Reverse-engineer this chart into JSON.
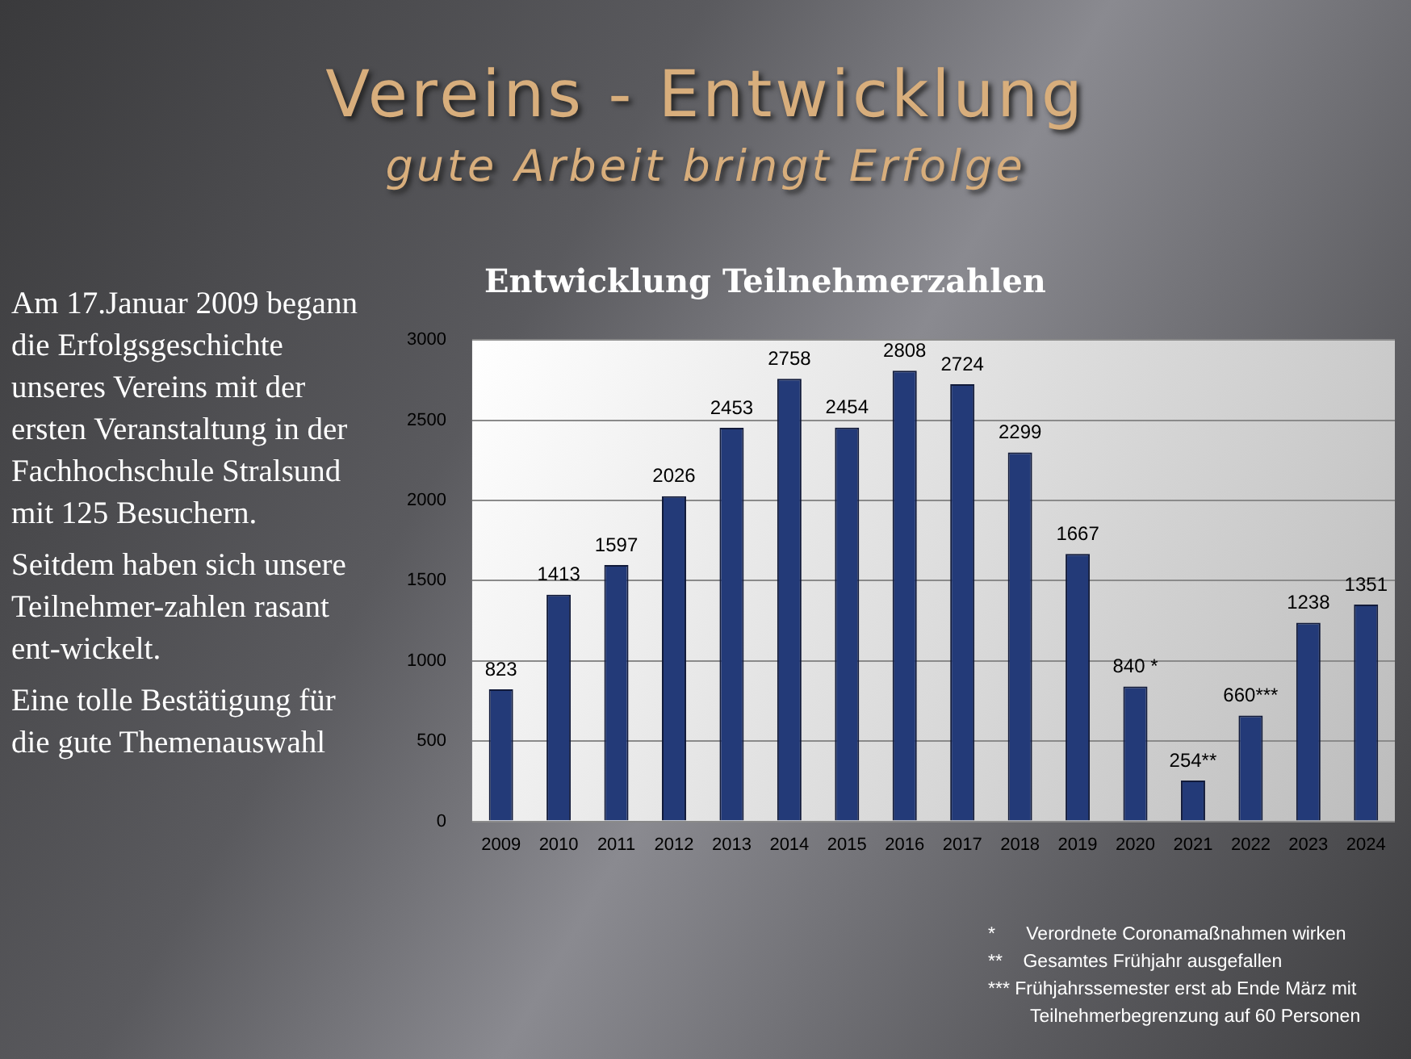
{
  "chart_data": {
    "type": "bar",
    "title": "Vereins - Entwicklung",
    "subtitle": "gute Arbeit bringt Erfolge",
    "categories": [
      "2009",
      "2010",
      "2011",
      "2012",
      "2013",
      "2014",
      "2015",
      "2016",
      "2017",
      "2018",
      "2019",
      "2020",
      "2021",
      "2022",
      "2023",
      "2024"
    ],
    "values": [
      823,
      1413,
      1597,
      2026,
      2453,
      2758,
      2454,
      2808,
      2724,
      2299,
      1667,
      840,
      254,
      660,
      1238,
      1351
    ],
    "value_labels": [
      "823",
      "1413",
      "1597",
      "2026",
      "2453",
      "2758",
      "2454",
      "2808",
      "2724",
      "2299",
      "1667",
      "840 *",
      "254**",
      "660***",
      "1238",
      "1351"
    ],
    "color": "#233a78",
    "ylim": [
      0,
      3000
    ],
    "yticks": [
      0,
      500,
      1000,
      1500,
      2000,
      2500,
      3000
    ],
    "grid": "y",
    "legend": false,
    "annotations": [
      "Entwicklung Teilnehmerzahlen",
      "Am 17.Januar 2009 begann die Erfolgsgeschichte unseres Vereins mit der ersten Veranstaltung in der Fachhochschule Stralsund mit 125 Besuchern.",
      "Seitdem haben sich unsere Teilnehmer-zahlen rasant ent-wickelt.",
      "Eine tolle Bestätigung für die gute Themenauswahl",
      "*      Verordnete Coronamaßnahmen wirken",
      "**    Gesamtes Frühjahr ausgefallen",
      "*** Frühjahrssemester erst ab Ende März mit Teilnehmerbegrenzung auf 60 Personen"
    ]
  }
}
